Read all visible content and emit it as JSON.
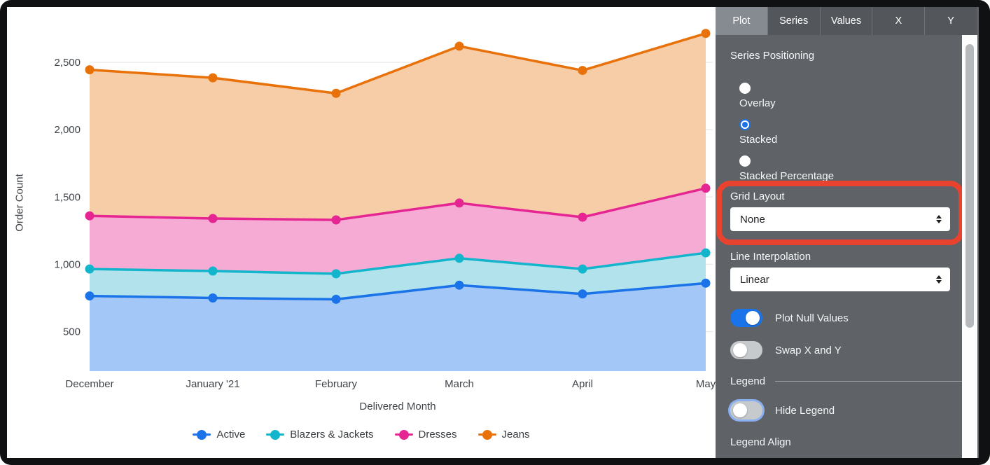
{
  "chart_data": {
    "type": "area",
    "stacked": true,
    "title": "",
    "xlabel": "Delivered Month",
    "ylabel": "Order Count",
    "x": [
      "December",
      "January '21",
      "February",
      "March",
      "April",
      "May"
    ],
    "y_ticks": [
      500,
      1000,
      1500,
      2000,
      2500
    ],
    "ylim": [
      200,
      2810
    ],
    "grid": "horizontal",
    "legend_position": "bottom",
    "series": [
      {
        "name": "Active",
        "color": "#1a73e8",
        "fill": "#a3c7f6",
        "values": [
          765,
          750,
          740,
          845,
          780,
          860
        ],
        "values_cumulative": [
          765,
          750,
          740,
          845,
          780,
          860
        ]
      },
      {
        "name": "Blazers & Jackets",
        "color": "#12b5cb",
        "fill": "#b2e2ec",
        "values": [
          200,
          200,
          190,
          200,
          185,
          225
        ],
        "values_cumulative": [
          965,
          950,
          930,
          1045,
          965,
          1085
        ]
      },
      {
        "name": "Dresses",
        "color": "#e52592",
        "fill": "#f6abd5",
        "values": [
          395,
          390,
          400,
          410,
          385,
          480
        ],
        "values_cumulative": [
          1360,
          1340,
          1330,
          1455,
          1350,
          1565
        ]
      },
      {
        "name": "Jeans",
        "color": "#e8710a",
        "fill": "#f7cda8",
        "values": [
          1085,
          1045,
          940,
          1165,
          1090,
          1150
        ],
        "values_cumulative": [
          2445,
          2385,
          2270,
          2620,
          2440,
          2715
        ]
      }
    ]
  },
  "panel": {
    "tabs": [
      {
        "label": "Plot",
        "active": true
      },
      {
        "label": "Series",
        "active": false
      },
      {
        "label": "Values",
        "active": false
      },
      {
        "label": "X",
        "active": false
      },
      {
        "label": "Y",
        "active": false
      }
    ],
    "series_positioning": {
      "label": "Series Positioning",
      "options": [
        {
          "label": "Overlay",
          "selected": false
        },
        {
          "label": "Stacked",
          "selected": true
        },
        {
          "label": "Stacked Percentage",
          "selected": false
        }
      ]
    },
    "grid_layout": {
      "label": "Grid Layout",
      "value": "None",
      "annotated": true
    },
    "line_interpolation": {
      "label": "Line Interpolation",
      "value": "Linear"
    },
    "toggles": [
      {
        "label": "Plot Null Values",
        "on": true,
        "focus": false
      },
      {
        "label": "Swap X and Y",
        "on": false,
        "focus": false
      }
    ],
    "legend_section": {
      "title": "Legend",
      "hide_legend": {
        "label": "Hide Legend",
        "on": false,
        "focus": true
      },
      "legend_align_label": "Legend Align"
    },
    "annotation_color": "#e8432e",
    "accent_color": "#1a73e8"
  }
}
